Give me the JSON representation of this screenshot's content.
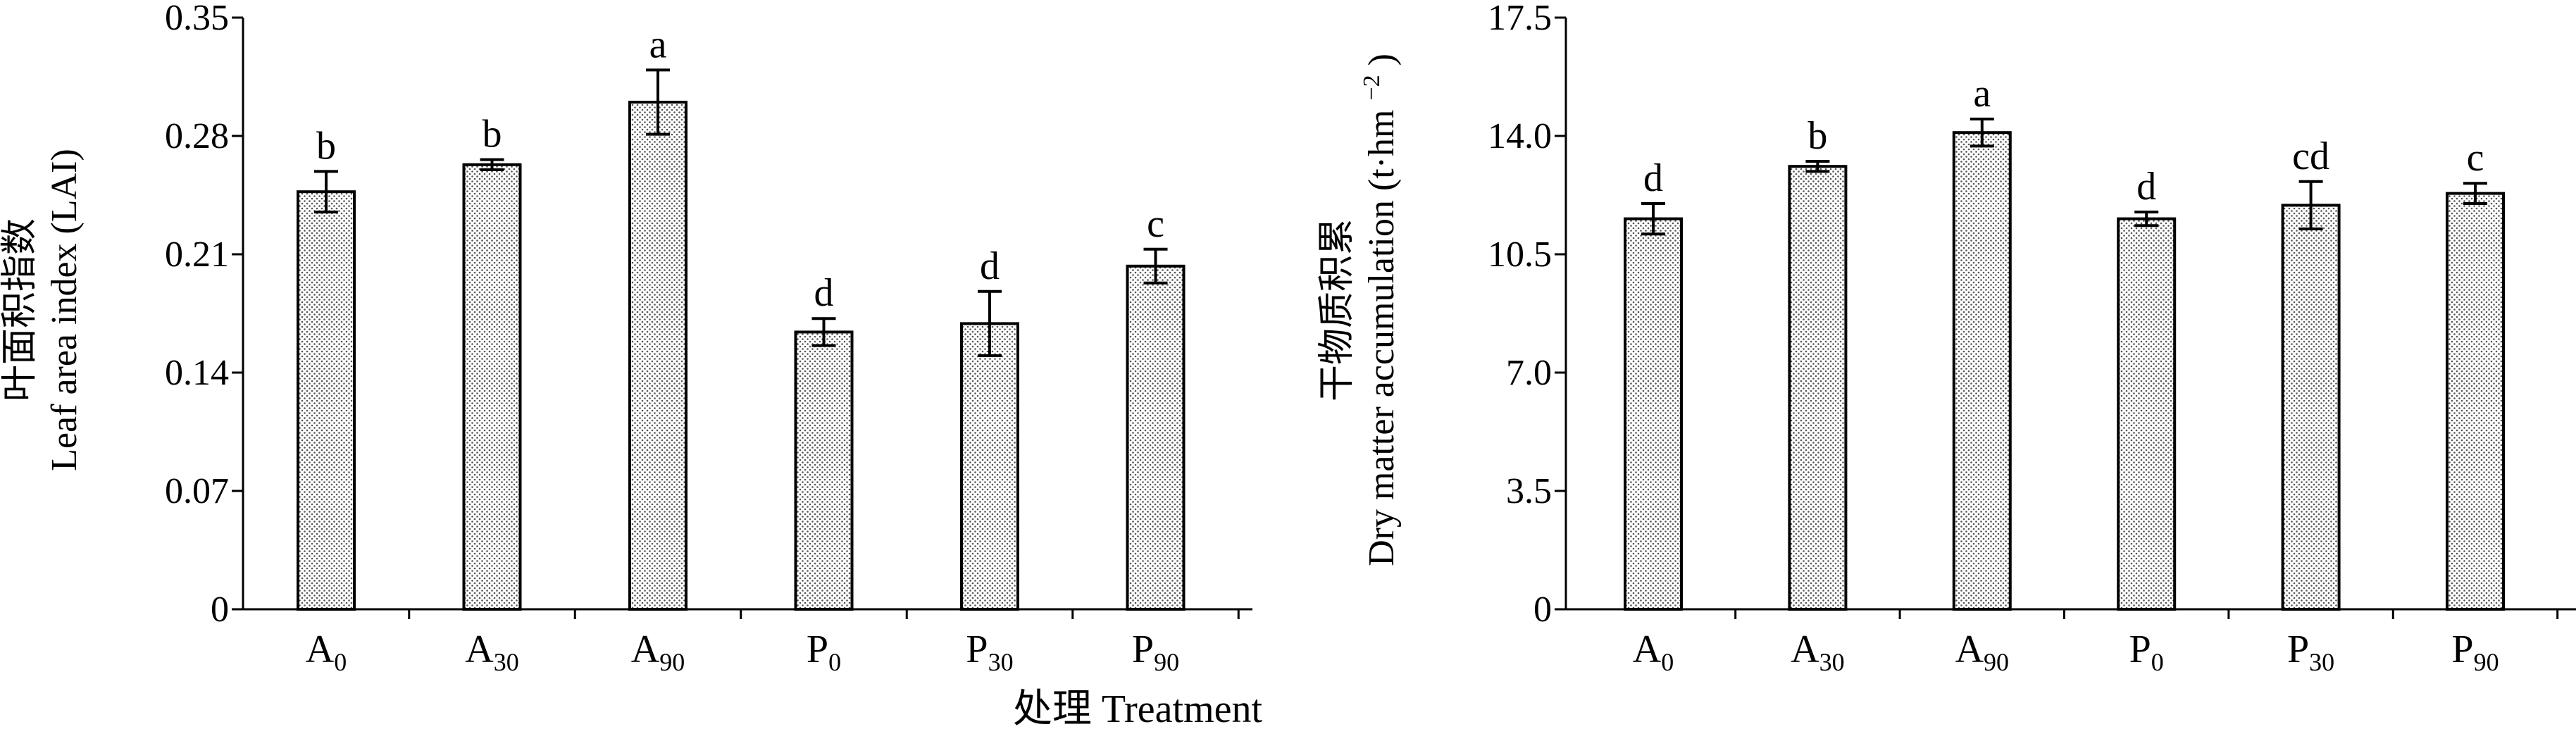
{
  "x_axis_label": "处理 Treatment",
  "colors": {
    "bar_fill": "#ffffff",
    "dot": "#555555",
    "stroke": "#000000"
  },
  "chart_data": [
    {
      "type": "bar",
      "title": "",
      "ylabel_zh": "叶面积指数",
      "ylabel_en": "Leaf area index (LAI)",
      "ylim": [
        0,
        0.35
      ],
      "yticks": [
        "0",
        "0.07",
        "0.14",
        "0.21",
        "0.28",
        "0.35"
      ],
      "categories": [
        {
          "base": "A",
          "sub": "0"
        },
        {
          "base": "A",
          "sub": "30"
        },
        {
          "base": "A",
          "sub": "90"
        },
        {
          "base": "P",
          "sub": "0"
        },
        {
          "base": "P",
          "sub": "30"
        },
        {
          "base": "P",
          "sub": "90"
        }
      ],
      "values": [
        0.247,
        0.263,
        0.3,
        0.164,
        0.169,
        0.203
      ],
      "errors": [
        0.012,
        0.003,
        0.019,
        0.008,
        0.019,
        0.01
      ],
      "letters": [
        "b",
        "b",
        "a",
        "d",
        "d",
        "c"
      ]
    },
    {
      "type": "bar",
      "title": "",
      "ylabel_zh": "干物质积累",
      "ylabel_en": "Dry matter accumulation",
      "ylabel_unit_pre": "(t·hm",
      "ylabel_unit_sup": "−2",
      "ylabel_unit_post": ")",
      "ylim": [
        0,
        17.5
      ],
      "yticks": [
        "0",
        "3.5",
        "7.0",
        "10.5",
        "14.0",
        "17.5"
      ],
      "categories": [
        {
          "base": "A",
          "sub": "0"
        },
        {
          "base": "A",
          "sub": "30"
        },
        {
          "base": "A",
          "sub": "90"
        },
        {
          "base": "P",
          "sub": "0"
        },
        {
          "base": "P",
          "sub": "30"
        },
        {
          "base": "P",
          "sub": "90"
        }
      ],
      "values": [
        11.55,
        13.1,
        14.1,
        11.55,
        11.95,
        12.3
      ],
      "errors": [
        0.45,
        0.15,
        0.4,
        0.2,
        0.7,
        0.3
      ],
      "letters": [
        "d",
        "b",
        "a",
        "d",
        "cd",
        "c"
      ]
    }
  ]
}
